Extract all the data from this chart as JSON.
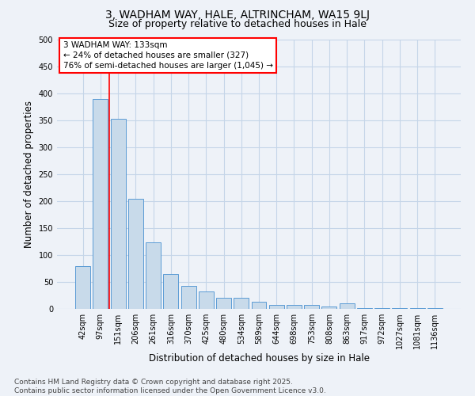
{
  "title_line1": "3, WADHAM WAY, HALE, ALTRINCHAM, WA15 9LJ",
  "title_line2": "Size of property relative to detached houses in Hale",
  "xlabel": "Distribution of detached houses by size in Hale",
  "ylabel": "Number of detached properties",
  "categories": [
    "42sqm",
    "97sqm",
    "151sqm",
    "206sqm",
    "261sqm",
    "316sqm",
    "370sqm",
    "425sqm",
    "480sqm",
    "534sqm",
    "589sqm",
    "644sqm",
    "698sqm",
    "753sqm",
    "808sqm",
    "863sqm",
    "917sqm",
    "972sqm",
    "1027sqm",
    "1081sqm",
    "1136sqm"
  ],
  "values": [
    80,
    390,
    353,
    205,
    123,
    64,
    43,
    33,
    20,
    21,
    13,
    7,
    7,
    8,
    5,
    10,
    2,
    1,
    1,
    1,
    1
  ],
  "bar_color": "#c8daea",
  "bar_edge_color": "#5b9bd5",
  "background_color": "#eef2f8",
  "grid_color": "#c5d5e8",
  "red_line_x": 1.5,
  "ylim": [
    0,
    500
  ],
  "yticks": [
    0,
    50,
    100,
    150,
    200,
    250,
    300,
    350,
    400,
    450,
    500
  ],
  "annotation_line1": "3 WADHAM WAY: 133sqm",
  "annotation_line2": "← 24% of detached houses are smaller (327)",
  "annotation_line3": "76% of semi-detached houses are larger (1,045) →",
  "footnote_line1": "Contains HM Land Registry data © Crown copyright and database right 2025.",
  "footnote_line2": "Contains public sector information licensed under the Open Government Licence v3.0.",
  "title_fontsize": 10,
  "subtitle_fontsize": 9,
  "label_fontsize": 8.5,
  "tick_fontsize": 7,
  "annotation_fontsize": 7.5,
  "footnote_fontsize": 6.5
}
